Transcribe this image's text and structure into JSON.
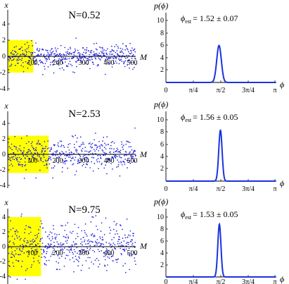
{
  "chart_data": [
    {
      "type": "scatter",
      "title": "N=0.52",
      "xlabel": "M",
      "ylabel": "x",
      "xlim": [
        0,
        520
      ],
      "ylim": [
        -4.6,
        4.6
      ],
      "x_ticks": [
        "100",
        "200",
        "300",
        "400",
        "500"
      ],
      "y_ticks": [
        "4",
        "2",
        "0",
        "-2",
        "-4"
      ],
      "highlight_region": {
        "x": [
          0,
          100
        ],
        "y": [
          -2,
          2
        ],
        "color": "#ffff00"
      },
      "num_points": 500,
      "x_spread_sd": 0.7,
      "point_color": "#2222dd"
    },
    {
      "type": "line",
      "title": "",
      "xlabel": "ϕ",
      "ylabel": "p(ϕ)",
      "xlim": [
        0,
        3.1416
      ],
      "ylim": [
        0,
        11.5
      ],
      "x_ticks": [
        "0",
        "π/4",
        "π/2",
        "3π/4",
        "π"
      ],
      "y_ticks": [
        "10",
        "8",
        "6",
        "4",
        "2"
      ],
      "annotation": "ϕest = 1.52 ± 0.07",
      "annotation_main": "ϕ",
      "annotation_sub": "est",
      "annotation_value": "= 1.52 ± 0.07",
      "peak_center": 1.52,
      "peak_height": 6.0,
      "peak_sd": 0.066,
      "line_color": "#1a33dd"
    },
    {
      "type": "scatter",
      "title": "N=2.53",
      "xlabel": "M",
      "ylabel": "x",
      "xlim": [
        0,
        520
      ],
      "ylim": [
        -4.6,
        4.6
      ],
      "x_ticks": [
        "100",
        "200",
        "300",
        "400",
        "500"
      ],
      "y_ticks": [
        "4",
        "2",
        "0",
        "-2",
        "-4"
      ],
      "highlight_region": {
        "x": [
          0,
          160
        ],
        "y": [
          -2.4,
          2.4
        ],
        "color": "#ffff00"
      },
      "num_points": 500,
      "x_spread_sd": 1.0,
      "point_color": "#2222dd"
    },
    {
      "type": "line",
      "title": "",
      "xlabel": "ϕ",
      "ylabel": "p(ϕ)",
      "xlim": [
        0,
        3.1416
      ],
      "ylim": [
        0,
        11.5
      ],
      "x_ticks": [
        "0",
        "π/4",
        "π/2",
        "3π/4",
        "π"
      ],
      "y_ticks": [
        "10",
        "8",
        "6",
        "4",
        "2"
      ],
      "annotation": "ϕest = 1.56 ± 0.05",
      "annotation_main": "ϕ",
      "annotation_sub": "est",
      "annotation_value": "= 1.56 ± 0.05",
      "peak_center": 1.56,
      "peak_height": 8.3,
      "peak_sd": 0.048,
      "line_color": "#1a33dd"
    },
    {
      "type": "scatter",
      "title": "N=9.75",
      "xlabel": "M",
      "ylabel": "x",
      "xlim": [
        0,
        520
      ],
      "ylim": [
        -4.6,
        4.6
      ],
      "x_ticks": [
        "100",
        "200",
        "300",
        "400",
        "500"
      ],
      "y_ticks": [
        "4",
        "2",
        "0",
        "-2",
        "-4"
      ],
      "highlight_region": {
        "x": [
          0,
          130
        ],
        "y": [
          -4,
          4
        ],
        "color": "#ffff00"
      },
      "num_points": 500,
      "x_spread_sd": 1.6,
      "point_color": "#2222dd"
    },
    {
      "type": "line",
      "title": "",
      "xlabel": "ϕ",
      "ylabel": "p(ϕ)",
      "xlim": [
        0,
        3.1416
      ],
      "ylim": [
        0,
        11.5
      ],
      "x_ticks": [
        "0",
        "π/4",
        "π/2",
        "3π/4",
        "π"
      ],
      "y_ticks": [
        "10",
        "8",
        "6",
        "4",
        "2"
      ],
      "annotation": "ϕest = 1.53 ± 0.05",
      "annotation_main": "ϕ",
      "annotation_sub": "est",
      "annotation_value": "= 1.53 ± 0.05",
      "peak_center": 1.53,
      "peak_height": 8.8,
      "peak_sd": 0.045,
      "line_color": "#1a33dd"
    }
  ]
}
